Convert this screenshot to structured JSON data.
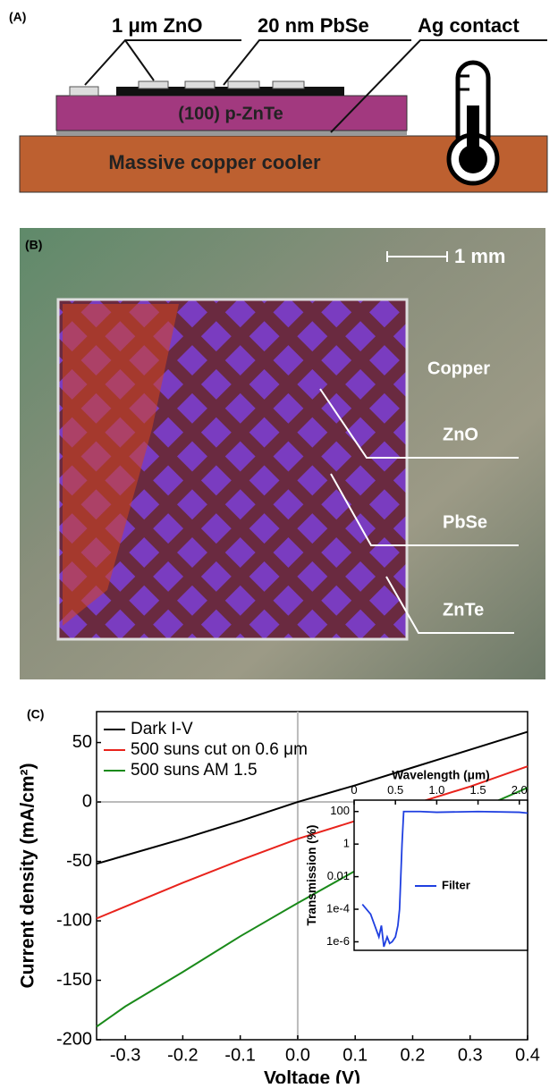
{
  "panel_a": {
    "label": "(A)",
    "zno": "1 μm ZnO",
    "pbse": "20 nm PbSe",
    "ag": "Ag contact",
    "znte": "(100) p-ZnTe",
    "copper": "Massive copper cooler"
  },
  "panel_b": {
    "label": "(B)",
    "scale": "1 mm",
    "copper": "Copper",
    "zno": "ZnO",
    "pbse": "PbSe",
    "znte": "ZnTe"
  },
  "panel_c_label": "(C)",
  "chart_data": [
    {
      "type": "line",
      "x_label": "Voltage (V)",
      "y_label": "Current density (mA/cm²)",
      "x": [
        -0.35,
        -0.3,
        -0.2,
        -0.1,
        0,
        0.1,
        0.2,
        0.3,
        0.4
      ],
      "series": [
        {
          "name": "Dark I-V",
          "color": "#000000",
          "values": [
            -52,
            -45,
            -31,
            -16,
            0,
            14,
            29,
            44,
            59
          ]
        },
        {
          "name": "500 suns cut on 0.6 μm",
          "color": "#e8231c",
          "values": [
            -98,
            -88,
            -68,
            -49,
            -31,
            -16,
            -2,
            13,
            30
          ]
        },
        {
          "name": "500 suns AM 1.5",
          "color": "#1a8a1a",
          "values": [
            -189,
            -172,
            -143,
            -113,
            -85,
            -58,
            -33,
            -9,
            12
          ]
        }
      ],
      "xlim": [
        -0.35,
        0.4
      ],
      "xticks": [
        -0.3,
        -0.2,
        -0.1,
        {
          "value": 0,
          "label": "0.0"
        },
        0.1,
        0.2,
        0.3,
        0.4
      ],
      "ylim": [
        -200,
        76
      ],
      "yticks": [
        -200,
        -150,
        -100,
        -50,
        0,
        50
      ],
      "legend": "upper-left"
    },
    {
      "type": "line",
      "x_label": "Wavelength (μm)",
      "y_label": "Transmission (%)",
      "x": [
        0.1,
        0.15,
        0.2,
        0.25,
        0.3,
        0.33,
        0.36,
        0.4,
        0.43,
        0.46,
        0.5,
        0.53,
        0.55,
        0.58,
        0.6,
        0.62,
        0.8,
        1.0,
        1.5,
        2.0,
        2.1
      ],
      "series": [
        {
          "name": "Filter",
          "color": "#1f3fe0",
          "values": [
            0.0002,
            0.0001,
            5e-05,
            1e-05,
            2e-06,
            1e-05,
            5e-07,
            2e-06,
            8e-07,
            1e-06,
            2e-06,
            1e-05,
            0.0001,
            1,
            100,
            100,
            100,
            90,
            100,
            90,
            80
          ]
        }
      ],
      "xlim": [
        0,
        2.1
      ],
      "xticks": [
        0,
        0.5,
        {
          "value": 1,
          "label": "1.0"
        },
        1.5,
        {
          "value": 2,
          "label": "2.0"
        }
      ],
      "ylim": [
        3e-07,
        500
      ],
      "yscale": "log",
      "yticks": [
        {
          "value": 1e-06,
          "label": "1e-6"
        },
        {
          "value": 0.0001,
          "label": "1e-4"
        },
        0.01,
        1,
        100
      ],
      "xaxis_position": "top",
      "legend": "center-right"
    }
  ]
}
